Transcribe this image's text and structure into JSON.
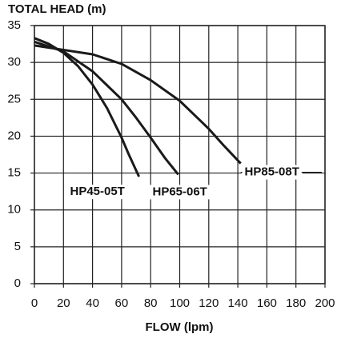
{
  "chart_data": {
    "type": "line",
    "title": "TOTAL HEAD (m)",
    "x_label": "FLOW (lpm)",
    "xlim": [
      0,
      200
    ],
    "xticks": [
      0,
      20,
      40,
      60,
      80,
      100,
      120,
      140,
      160,
      180,
      200
    ],
    "ylim": [
      0,
      35
    ],
    "yticks": [
      0,
      5,
      10,
      15,
      20,
      25,
      30,
      35
    ],
    "grid": true,
    "series": [
      {
        "name": "HP45-05T",
        "color": "#1a1a1a",
        "x": [
          0,
          10,
          20,
          30,
          40,
          50,
          60,
          65,
          72
        ],
        "values": [
          33.3,
          32.5,
          31.3,
          29.5,
          27,
          23.8,
          19.8,
          17.5,
          14.5
        ]
      },
      {
        "name": "HP65-06T",
        "color": "#1a1a1a",
        "x": [
          0,
          20,
          40,
          60,
          70,
          80,
          90,
          99
        ],
        "values": [
          32.8,
          31.5,
          28.8,
          25,
          22.5,
          19.8,
          17,
          14.8
        ]
      },
      {
        "name": "HP85-08T",
        "color": "#1a1a1a",
        "x": [
          0,
          20,
          40,
          60,
          80,
          100,
          120,
          130,
          142
        ],
        "values": [
          32.3,
          31.7,
          31.1,
          29.8,
          27.6,
          24.8,
          21,
          18.8,
          16.3
        ]
      }
    ]
  }
}
